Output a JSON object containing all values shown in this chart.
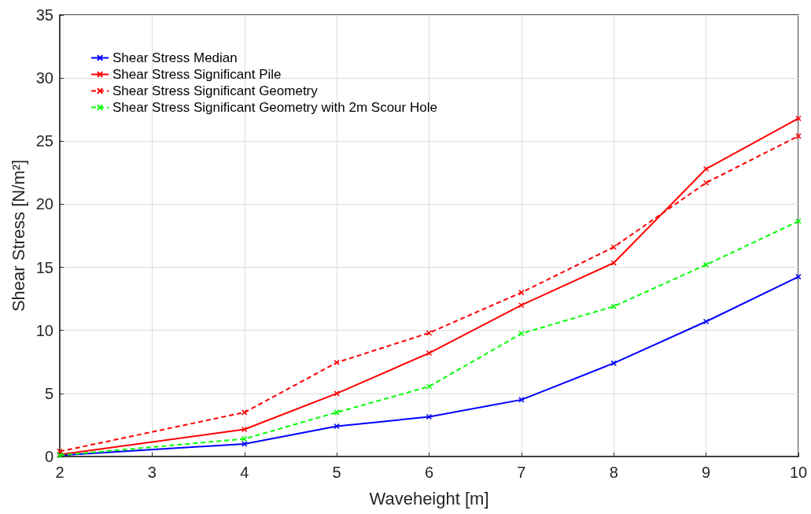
{
  "chart_data": {
    "type": "line",
    "xlabel": "Waveheight [m]",
    "ylabel": "Shear Stress [N/m²]",
    "x": [
      2,
      4,
      5,
      6,
      7,
      8,
      9,
      10
    ],
    "series": [
      {
        "name": "Shear Stress Median",
        "color": "#0000ff",
        "line_style": "solid",
        "values": [
          0.1,
          1.0,
          2.4,
          3.15,
          4.5,
          7.4,
          10.7,
          14.25
        ]
      },
      {
        "name": "Shear Stress Significant Pile",
        "color": "#ff0000",
        "line_style": "solid",
        "values": [
          0.15,
          2.15,
          5.0,
          8.2,
          12.0,
          15.35,
          22.8,
          26.8
        ]
      },
      {
        "name": "Shear Stress Significant Geometry",
        "color": "#ff0000",
        "line_style": "dashed",
        "values": [
          0.4,
          3.5,
          7.45,
          9.8,
          13.0,
          16.6,
          21.7,
          25.4
        ]
      },
      {
        "name": "Shear Stress Significant Geometry with 2m Scour Hole",
        "color": "#00ff00",
        "line_style": "dashed",
        "values": [
          0.1,
          1.4,
          3.5,
          5.55,
          9.75,
          11.9,
          15.2,
          18.65
        ]
      }
    ],
    "xlim": [
      2,
      10
    ],
    "xticks": [
      2,
      3,
      4,
      5,
      6,
      7,
      8,
      9,
      10
    ],
    "ylim": [
      0,
      35
    ],
    "yticks": [
      0,
      5,
      10,
      15,
      20,
      25,
      30,
      35
    ],
    "grid": true,
    "legend": "top left",
    "marker": "cross"
  }
}
